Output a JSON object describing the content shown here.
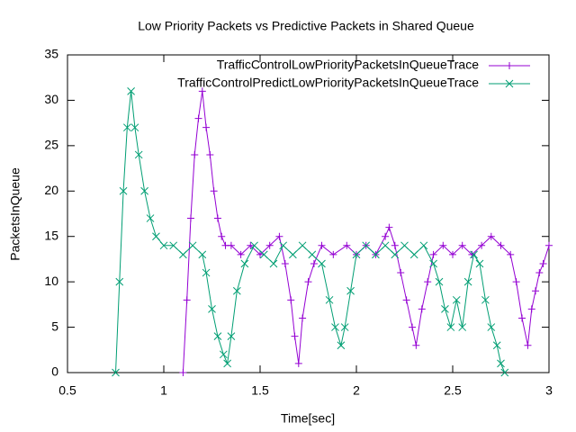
{
  "chart_data": {
    "type": "line",
    "title": "Low Priority Packets vs Predictive Packets in Shared Queue",
    "x_label": "Time[sec]",
    "y_label": "PacketsInQueue",
    "xlim": [
      0.5,
      3
    ],
    "xticks": [
      0.5,
      1,
      1.5,
      2,
      2.5,
      3
    ],
    "ylim": [
      0,
      35
    ],
    "yticks": [
      0,
      5,
      10,
      15,
      20,
      25,
      30,
      35
    ],
    "legend": "top-right",
    "series": [
      {
        "name": "TrafficControlLowPriorityPacketsInQueueTrace",
        "color": "#9400d3",
        "marker": "+",
        "x": [
          1.1,
          1.12,
          1.14,
          1.16,
          1.18,
          1.2,
          1.22,
          1.24,
          1.26,
          1.28,
          1.3,
          1.32,
          1.35,
          1.4,
          1.45,
          1.5,
          1.55,
          1.6,
          1.63,
          1.66,
          1.68,
          1.7,
          1.72,
          1.75,
          1.78,
          1.82,
          1.88,
          1.95,
          2.0,
          2.05,
          2.1,
          2.15,
          2.17,
          2.2,
          2.23,
          2.26,
          2.29,
          2.31,
          2.34,
          2.37,
          2.4,
          2.45,
          2.5,
          2.55,
          2.6,
          2.65,
          2.7,
          2.75,
          2.8,
          2.83,
          2.86,
          2.89,
          2.91,
          2.93,
          2.95,
          2.97,
          3.0
        ],
        "values": [
          0,
          8,
          17,
          24,
          28,
          31,
          27,
          24,
          20,
          17,
          15,
          14,
          14,
          13,
          14,
          13,
          14,
          15,
          12,
          8,
          4,
          1,
          6,
          10,
          12,
          14,
          13,
          14,
          13,
          14,
          13,
          15,
          16,
          14,
          11,
          8,
          5,
          3,
          7,
          10,
          13,
          14,
          13,
          14,
          13,
          14,
          15,
          14,
          13,
          10,
          6,
          3,
          7,
          9,
          11,
          12,
          14
        ]
      },
      {
        "name": "TrafficControlPredictLowPriorityPacketsInQueueTrace",
        "color": "#009e73",
        "marker": "x",
        "x": [
          0.75,
          0.77,
          0.79,
          0.81,
          0.83,
          0.85,
          0.87,
          0.9,
          0.93,
          0.96,
          1.0,
          1.05,
          1.1,
          1.15,
          1.2,
          1.22,
          1.25,
          1.28,
          1.31,
          1.33,
          1.35,
          1.38,
          1.42,
          1.47,
          1.52,
          1.57,
          1.62,
          1.67,
          1.72,
          1.77,
          1.82,
          1.86,
          1.89,
          1.92,
          1.94,
          1.97,
          2.0,
          2.05,
          2.1,
          2.15,
          2.2,
          2.25,
          2.3,
          2.35,
          2.4,
          2.43,
          2.46,
          2.49,
          2.52,
          2.55,
          2.58,
          2.61,
          2.64,
          2.67,
          2.7,
          2.73,
          2.75,
          2.77
        ],
        "values": [
          0,
          10,
          20,
          27,
          31,
          27,
          24,
          20,
          17,
          15,
          14,
          14,
          13,
          14,
          13,
          11,
          7,
          4,
          2,
          1,
          4,
          9,
          12,
          14,
          13,
          12,
          14,
          13,
          14,
          13,
          12,
          8,
          5,
          3,
          5,
          9,
          13,
          14,
          13,
          14,
          13,
          14,
          13,
          14,
          12,
          10,
          7,
          5,
          8,
          5,
          10,
          13,
          12,
          8,
          5,
          3,
          1,
          0
        ]
      }
    ]
  }
}
